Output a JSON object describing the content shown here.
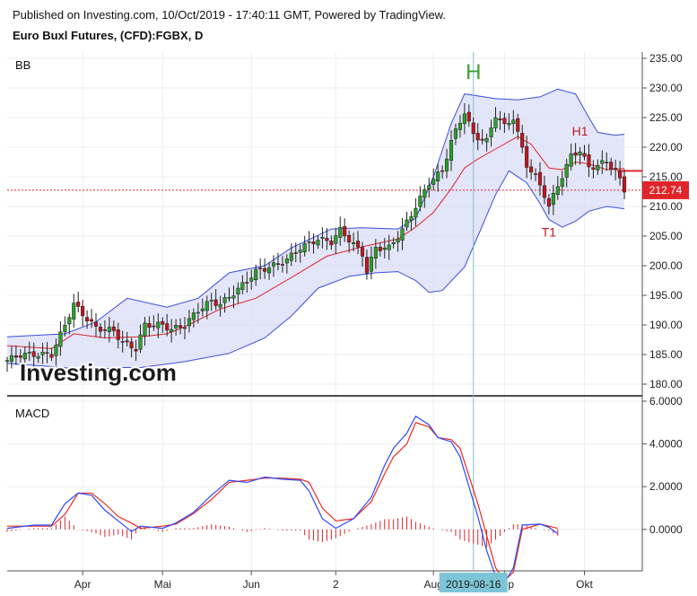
{
  "header": {
    "published": "Published on Investing.com, 10/Oct/2019 - 17:40:11 GMT, Powered by TradingView.",
    "instrument": "Euro Buxl Futures, (CFD):FGBX, D"
  },
  "logo_text": "Investing.com",
  "colors": {
    "up": "#2ca02c",
    "down": "#c0181f",
    "bb_line": "#3a4fe0",
    "bb_fill": "#d9dcf5",
    "mid": "#e0252a",
    "macd": "#2a48ff",
    "signal": "#ee2a1e",
    "crosshair": "#7fbfcf",
    "price_line": "#e0252a"
  },
  "chart_data": [
    {
      "type": "candlestick",
      "panel_label": "BB",
      "ylim": [
        178,
        236
      ],
      "y_ticks": [
        "235.00",
        "230.00",
        "225.00",
        "220.00",
        "215.00",
        "210.00",
        "205.00",
        "200.00",
        "195.00",
        "190.00",
        "185.00",
        "180.00"
      ],
      "last_price_label": "212.74",
      "last_price": 212.74,
      "annotations": [
        {
          "text": "H",
          "x": 105,
          "y": 231.5,
          "color": "#3fa037"
        },
        {
          "text": "H1",
          "x": 129,
          "y": 222.0,
          "color": "#c0181f"
        },
        {
          "text": "T1",
          "x": 122,
          "y": 204.9,
          "color": "#c0181f"
        }
      ],
      "bb_upper": [
        [
          0,
          188
        ],
        [
          13,
          188.5
        ],
        [
          20,
          190.5
        ],
        [
          27,
          194.5
        ],
        [
          36,
          193
        ],
        [
          43,
          194.5
        ],
        [
          50,
          198.8
        ],
        [
          58,
          200
        ],
        [
          64,
          203
        ],
        [
          73,
          206.2
        ],
        [
          80,
          206.4
        ],
        [
          88,
          206.2
        ],
        [
          92,
          208
        ],
        [
          96,
          215
        ],
        [
          100,
          224
        ],
        [
          103,
          229
        ],
        [
          110,
          228.2
        ],
        [
          115,
          228
        ],
        [
          120,
          228.5
        ],
        [
          124,
          229.8
        ],
        [
          128,
          229
        ],
        [
          131,
          225
        ],
        [
          133,
          222.5
        ],
        [
          137,
          222
        ],
        [
          139,
          222.2
        ]
      ],
      "bb_lower": [
        [
          0,
          183.5
        ],
        [
          13,
          182.8
        ],
        [
          18,
          182
        ],
        [
          24,
          182.8
        ],
        [
          30,
          182.8
        ],
        [
          40,
          183.8
        ],
        [
          50,
          185.2
        ],
        [
          58,
          187.8
        ],
        [
          64,
          191.5
        ],
        [
          70,
          196.2
        ],
        [
          77,
          198.2
        ],
        [
          83,
          198.8
        ],
        [
          88,
          199
        ],
        [
          92,
          197.5
        ],
        [
          95,
          195.5
        ],
        [
          98,
          195.8
        ],
        [
          103,
          199.8
        ],
        [
          106,
          205
        ],
        [
          110,
          212
        ],
        [
          113,
          216
        ],
        [
          117,
          214
        ],
        [
          120,
          210.5
        ],
        [
          122,
          207.8
        ],
        [
          125,
          206.5
        ],
        [
          128,
          207.5
        ],
        [
          131,
          209.2
        ],
        [
          135,
          210
        ],
        [
          139,
          209.6
        ]
      ],
      "bb_mid": [
        [
          0,
          186.5
        ],
        [
          10,
          186
        ],
        [
          15,
          188.5
        ],
        [
          22,
          187.8
        ],
        [
          30,
          188
        ],
        [
          36,
          188.5
        ],
        [
          40,
          189.7
        ],
        [
          48,
          192.7
        ],
        [
          56,
          194.5
        ],
        [
          64,
          198
        ],
        [
          72,
          201.6
        ],
        [
          80,
          203.2
        ],
        [
          88,
          204.5
        ],
        [
          92,
          206.5
        ],
        [
          96,
          209
        ],
        [
          100,
          213
        ],
        [
          103,
          216.5
        ],
        [
          106,
          218
        ],
        [
          110,
          219.7
        ],
        [
          115,
          221.8
        ],
        [
          118,
          220.5
        ],
        [
          122,
          216.5
        ],
        [
          125,
          216.2
        ],
        [
          128,
          217.5
        ],
        [
          131,
          217.2
        ],
        [
          135,
          216.2
        ],
        [
          139,
          216.4
        ]
      ],
      "close_anchors": [
        [
          0,
          184
        ],
        [
          3,
          185
        ],
        [
          6,
          185
        ],
        [
          10,
          185
        ],
        [
          13,
          190
        ],
        [
          15,
          193.5
        ],
        [
          18,
          191
        ],
        [
          20,
          189.5
        ],
        [
          24,
          189
        ],
        [
          26,
          187
        ],
        [
          29,
          186
        ],
        [
          31,
          190
        ],
        [
          35,
          190
        ],
        [
          37,
          189.2
        ],
        [
          40,
          190
        ],
        [
          43,
          192.5
        ],
        [
          46,
          194
        ],
        [
          48,
          193.5
        ],
        [
          52,
          196
        ],
        [
          56,
          199
        ],
        [
          60,
          200
        ],
        [
          63,
          201
        ],
        [
          66,
          203
        ],
        [
          70,
          204.5
        ],
        [
          73,
          204
        ],
        [
          75,
          206
        ],
        [
          80,
          202
        ],
        [
          81,
          199
        ],
        [
          83,
          203
        ],
        [
          86,
          203
        ],
        [
          89,
          206
        ],
        [
          92,
          210
        ],
        [
          95,
          214
        ],
        [
          98,
          216
        ],
        [
          100,
          221
        ],
        [
          103,
          226
        ],
        [
          105,
          222
        ],
        [
          108,
          221
        ],
        [
          110,
          225.5
        ],
        [
          112,
          223.5
        ],
        [
          114,
          225
        ],
        [
          117,
          217
        ],
        [
          119,
          215
        ],
        [
          121,
          212
        ],
        [
          122,
          210
        ],
        [
          124,
          213.5
        ],
        [
          127,
          218.5
        ],
        [
          129,
          219.5
        ],
        [
          131,
          216.5
        ],
        [
          133,
          217
        ],
        [
          135,
          217.5
        ],
        [
          137,
          216
        ],
        [
          139,
          212.74
        ]
      ]
    },
    {
      "type": "line",
      "panel_label": "MACD",
      "ylim": [
        -2.6,
        6.2
      ],
      "y_ticks": [
        "6.0000",
        "4.0000",
        "2.0000",
        "0.0000"
      ],
      "series": [
        {
          "values_x_y": [
            [
              0,
              0.05
            ],
            [
              6,
              0.2
            ],
            [
              10,
              0.2
            ],
            [
              13,
              1.2
            ],
            [
              16,
              1.7
            ],
            [
              19,
              1.6
            ],
            [
              22,
              0.9
            ],
            [
              25,
              0.4
            ],
            [
              28,
              -0.1
            ],
            [
              30,
              0.15
            ],
            [
              35,
              0.05
            ],
            [
              38,
              0.3
            ],
            [
              42,
              0.8
            ],
            [
              46,
              1.6
            ],
            [
              50,
              2.3
            ],
            [
              54,
              2.2
            ],
            [
              58,
              2.45
            ],
            [
              62,
              2.35
            ],
            [
              66,
              2.3
            ],
            [
              68,
              1.8
            ],
            [
              71,
              0.5
            ],
            [
              74,
              0.05
            ],
            [
              78,
              0.5
            ],
            [
              82,
              1.5
            ],
            [
              85,
              3.0
            ],
            [
              87,
              3.8
            ],
            [
              90,
              4.5
            ],
            [
              92,
              5.3
            ],
            [
              95,
              4.9
            ],
            [
              97,
              4.3
            ],
            [
              100,
              4.1
            ],
            [
              102,
              3.4
            ],
            [
              104,
              2.0
            ],
            [
              106,
              0.6
            ],
            [
              108,
              -1.0
            ],
            [
              110,
              -2.2
            ],
            [
              112,
              -2.5
            ],
            [
              114,
              -1.8
            ],
            [
              116,
              0.2
            ],
            [
              120,
              0.25
            ],
            [
              122,
              0.1
            ],
            [
              124,
              -0.2
            ]
          ]
        },
        {
          "values_x_y": [
            [
              0,
              0.15
            ],
            [
              6,
              0.15
            ],
            [
              10,
              0.15
            ],
            [
              13,
              0.7
            ],
            [
              16,
              1.7
            ],
            [
              19,
              1.7
            ],
            [
              22,
              1.2
            ],
            [
              25,
              0.6
            ],
            [
              28,
              0.3
            ],
            [
              30,
              0.05
            ],
            [
              35,
              0.15
            ],
            [
              38,
              0.25
            ],
            [
              42,
              0.75
            ],
            [
              46,
              1.4
            ],
            [
              50,
              2.2
            ],
            [
              54,
              2.3
            ],
            [
              58,
              2.4
            ],
            [
              62,
              2.4
            ],
            [
              66,
              2.35
            ],
            [
              68,
              2.2
            ],
            [
              71,
              1.0
            ],
            [
              74,
              0.4
            ],
            [
              78,
              0.5
            ],
            [
              82,
              1.3
            ],
            [
              85,
              2.6
            ],
            [
              87,
              3.4
            ],
            [
              90,
              4.0
            ],
            [
              92,
              5.0
            ],
            [
              95,
              4.8
            ],
            [
              97,
              4.3
            ],
            [
              100,
              4.2
            ],
            [
              102,
              3.8
            ],
            [
              104,
              2.5
            ],
            [
              106,
              1.2
            ],
            [
              108,
              -0.3
            ],
            [
              110,
              -1.8
            ],
            [
              112,
              -2.4
            ],
            [
              114,
              -2.0
            ],
            [
              116,
              0.0
            ],
            [
              120,
              0.25
            ],
            [
              122,
              0.15
            ],
            [
              124,
              0.05
            ]
          ]
        }
      ]
    }
  ],
  "x_axis": {
    "labels": [
      {
        "text": "Apr",
        "x": 17
      },
      {
        "text": "Mai",
        "x": 35
      },
      {
        "text": "Jun",
        "x": 55
      },
      {
        "text": "2",
        "x": 74
      },
      {
        "text": "Aug",
        "x": 96
      },
      {
        "text": "Sep",
        "x": 112
      },
      {
        "text": "Okt",
        "x": 130
      }
    ],
    "highlight_label": "2019-08-16",
    "highlight_x": 105
  }
}
